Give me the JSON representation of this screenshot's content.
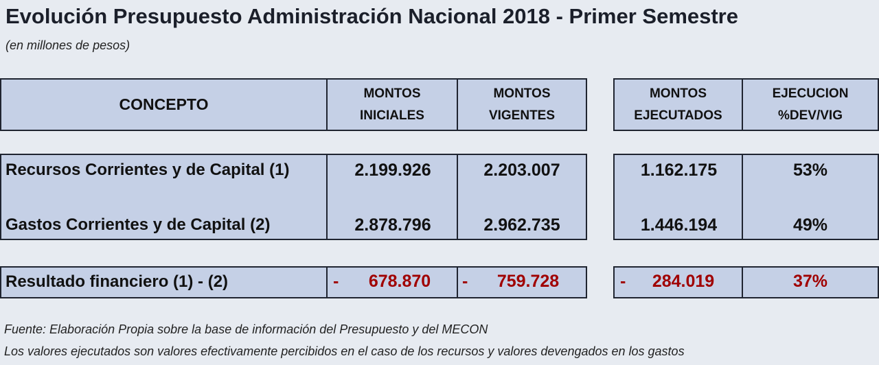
{
  "title": "Evolución Presupuesto Administración Nacional 2018 - Primer Semestre",
  "subtitle": "(en millones de pesos)",
  "headers": {
    "concepto": "CONCEPTO",
    "iniciales_1": "MONTOS",
    "iniciales_2": "INICIALES",
    "vigentes_1": "MONTOS",
    "vigentes_2": "VIGENTES",
    "ejecutados_1": "MONTOS",
    "ejecutados_2": "EJECUTADOS",
    "ejecucion_1": "EJECUCION",
    "ejecucion_2": "%DEV/VIG"
  },
  "rows": [
    {
      "concepto": "Recursos Corrientes y de Capital (1)",
      "iniciales": "2.199.926",
      "vigentes": "2.203.007",
      "ejecutados": "1.162.175",
      "ejecucion": "53%"
    },
    {
      "concepto": "Gastos Corrientes y de Capital (2)",
      "iniciales": "2.878.796",
      "vigentes": "2.962.735",
      "ejecutados": "1.446.194",
      "ejecucion": "49%"
    }
  ],
  "result": {
    "concepto": "Resultado financiero  (1) - (2)",
    "sign": "-",
    "iniciales": "678.870",
    "vigentes": "759.728",
    "ejecutados": "284.019",
    "ejecucion": "37%"
  },
  "colors": {
    "negative": "#a00000",
    "cell_fill": "#c5d0e6",
    "background": "#e7ebf1"
  },
  "notes": [
    "Fuente: Elaboración Propia sobre la base de información del Presupuesto y del MECON",
    "Los valores ejecutados son valores efectivamente percibidos en el caso de los recursos y valores devengados en los gastos"
  ]
}
